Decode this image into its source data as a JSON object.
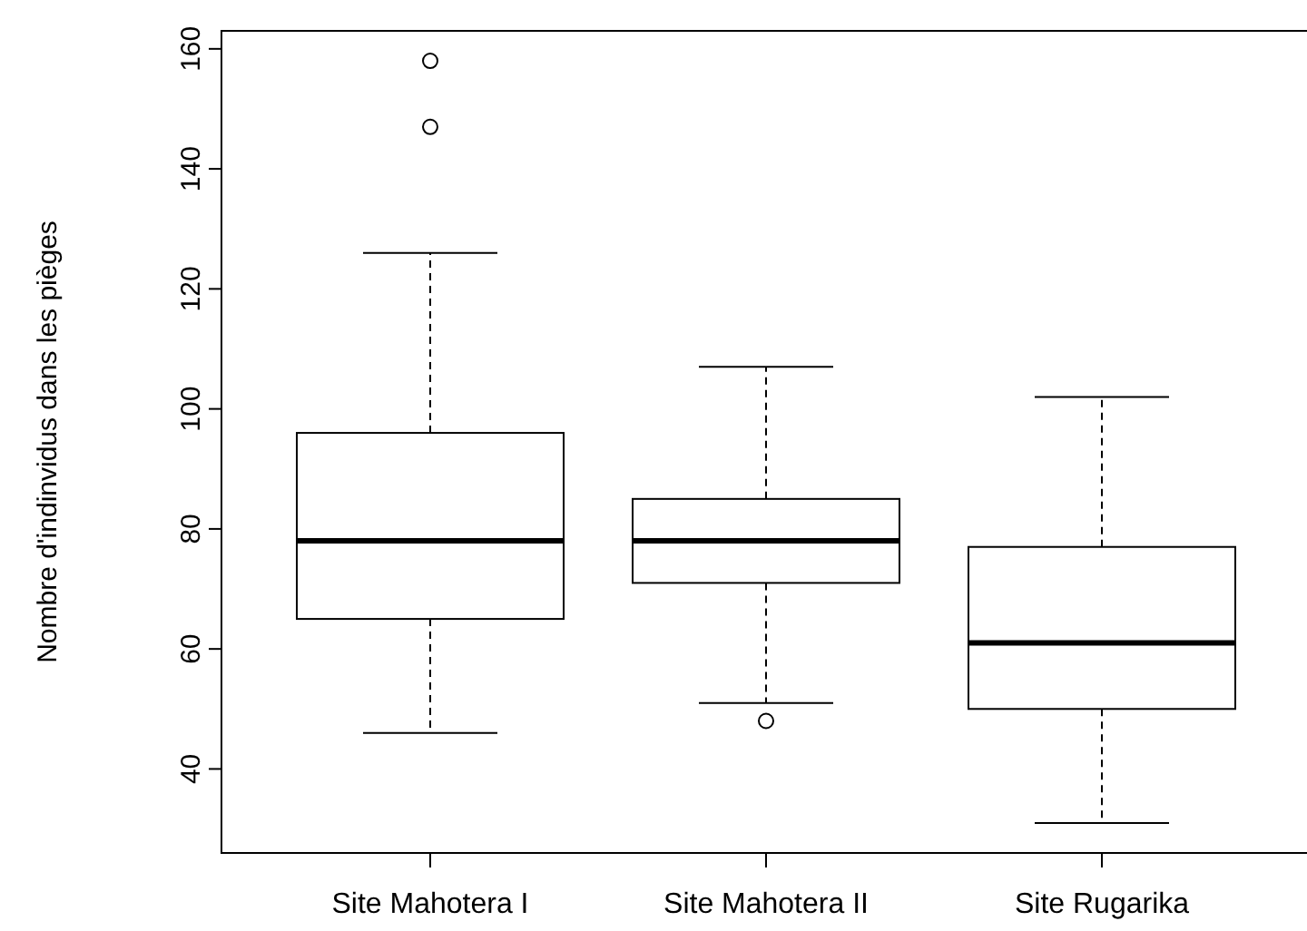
{
  "chart_data": {
    "type": "box",
    "ylabel": "Nombre d'indinvidus dans les pièges",
    "categories": [
      "Site Mahotera I",
      "Site Mahotera II",
      "Site Rugarika"
    ],
    "boxes": [
      {
        "low": 46,
        "q1": 65,
        "median": 78,
        "q3": 96,
        "high": 126,
        "outliers": [
          147,
          158
        ]
      },
      {
        "low": 51,
        "q1": 71,
        "median": 78,
        "q3": 85,
        "high": 107,
        "outliers": [
          48
        ]
      },
      {
        "low": 31,
        "q1": 50,
        "median": 61,
        "q3": 77,
        "high": 102
      }
    ],
    "ylim": [
      26,
      163
    ],
    "yticks": [
      40,
      60,
      80,
      100,
      120,
      140,
      160
    ]
  }
}
